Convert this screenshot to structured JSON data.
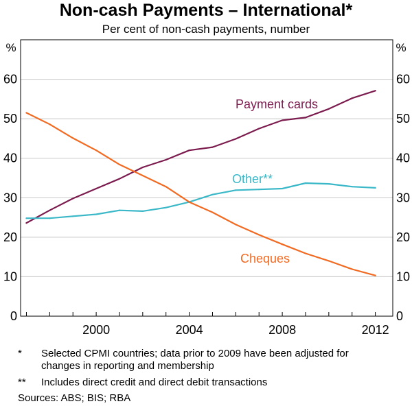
{
  "chart_data": {
    "type": "line",
    "title": "Non-cash Payments – International*",
    "subtitle": "Per cent of non-cash payments, number",
    "y_unit": "%",
    "ylim": [
      0,
      70
    ],
    "yticks": [
      0,
      10,
      20,
      30,
      40,
      50,
      60
    ],
    "xlim": [
      1996.75,
      2012.75
    ],
    "xticks": [
      2000,
      2004,
      2008,
      2012
    ],
    "xtick_labels": [
      "2000",
      "2004",
      "2008",
      "2012"
    ],
    "grid": true,
    "x": [
      1997,
      1998,
      1999,
      2000,
      2001,
      2002,
      2003,
      2004,
      2005,
      2006,
      2007,
      2008,
      2009,
      2010,
      2011,
      2012
    ],
    "series": [
      {
        "name": "Payment cards",
        "color": "#7b1b4e",
        "values": [
          23.6,
          26.8,
          29.8,
          32.3,
          34.8,
          37.7,
          39.6,
          42.0,
          42.8,
          44.9,
          47.5,
          49.6,
          50.3,
          52.5,
          55.2,
          57.1
        ]
      },
      {
        "name": "Other**",
        "color": "#3ab8c8",
        "values": [
          24.8,
          24.8,
          25.3,
          25.8,
          26.8,
          26.6,
          27.5,
          28.9,
          30.8,
          31.9,
          32.1,
          32.3,
          33.7,
          33.5,
          32.8,
          32.5
        ]
      },
      {
        "name": "Cheques",
        "color": "#f26a21",
        "values": [
          51.5,
          48.6,
          45.1,
          42.0,
          38.4,
          35.6,
          32.8,
          28.9,
          26.3,
          23.2,
          20.6,
          18.2,
          15.9,
          14.0,
          11.9,
          10.3
        ]
      }
    ]
  },
  "footnotes": [
    {
      "marker": "*",
      "lines": [
        "Selected CPMI countries; data prior to 2009 have been adjusted for",
        "changes in reporting and membership"
      ]
    },
    {
      "marker": "**",
      "lines": [
        "Includes direct credit and direct debit transactions"
      ]
    }
  ],
  "sources": "Sources:   ABS; BIS; RBA"
}
